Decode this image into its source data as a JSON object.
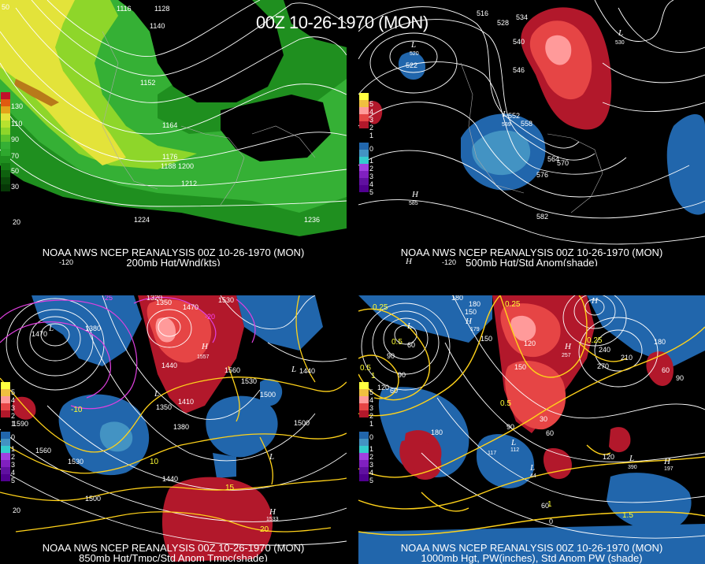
{
  "main_title": "00Z 10-26-1970 (MON)",
  "colors": {
    "background": "#000000",
    "contour": "#ffffff",
    "temp_contour": "#ffd21a",
    "magenta_contour": "#e040e0",
    "wind_light": "#2ea82e",
    "wind_mid": "#7fd12a",
    "wind_high": "#e6e640",
    "anom_neg1": "#2166ac",
    "anom_neg2": "#4393c3",
    "anom_pos1": "#b2182b",
    "anom_pos2": "#e64545",
    "anom_pos3": "#ff8888"
  },
  "panels": [
    {
      "id": "200mb",
      "caption_line1": "NOAA NWS NCEP REANALYSIS 00Z 10-26-1970 (MON)",
      "caption_line2": "200mb Hgt/Wnd(kts)",
      "legend_labels": [
        "130",
        "110",
        "90",
        "70",
        "50",
        "30"
      ],
      "height_labels": [
        "1116",
        "1128",
        "1140",
        "1152",
        "1164",
        "1176",
        "1188",
        "1200",
        "1212",
        "1224",
        "1236"
      ],
      "edge_labels": [
        "50",
        "20",
        "-120"
      ]
    },
    {
      "id": "500mb",
      "caption_line1": "NOAA NWS NCEP REANALYSIS 00Z 10-26-1970 (MON)",
      "caption_line2": "500mb Hgt/Std Anom(shade)",
      "legend_labels": [
        "5",
        "4",
        "3",
        "2",
        "1",
        "0",
        "1",
        "2",
        "3",
        "4",
        "5"
      ],
      "height_labels": [
        "516",
        "528",
        "534",
        "540",
        "546",
        "552",
        "558",
        "564",
        "570",
        "576",
        "582",
        "522",
        "520",
        "539",
        "530"
      ],
      "centers": [
        "L",
        "L",
        "H",
        "H",
        "L"
      ],
      "center_values": [
        "520",
        "539",
        "585",
        "530"
      ],
      "edge_labels": [
        "-120"
      ]
    },
    {
      "id": "850mb",
      "caption_line1": "NOAA NWS NCEP REANALYSIS 00Z 10-26-1970 (MON)",
      "caption_line2": "850mb Hgt/Tmpc/Std Anom Tmpc(shade)",
      "legend_labels": [
        "5",
        "4",
        "3",
        "2",
        "1",
        "0",
        "1",
        "2",
        "3",
        "4",
        "5"
      ],
      "height_labels": [
        "1320",
        "1350",
        "1470",
        "1530",
        "1380",
        "1440",
        "1560",
        "1530",
        "1500",
        "1440",
        "1410",
        "1380",
        "1350",
        "1590",
        "1560",
        "1530",
        "1500",
        "1440",
        "1500",
        "1470",
        "1533",
        "1557"
      ],
      "temp_labels": [
        "-10",
        "10",
        "15",
        "20",
        "-25",
        "-20"
      ],
      "centers": [
        "L",
        "H",
        "L",
        "L",
        "H",
        "L"
      ],
      "edge_labels": [
        "20"
      ]
    },
    {
      "id": "1000mb",
      "caption_line1": "NOAA NWS NCEP REANALYSIS 00Z 10-26-1970 (MON)",
      "caption_line2": "1000mb Hgt, PW(inches), Std Anom PW (shade)",
      "legend_labels": [
        "5",
        "4",
        "3",
        "2",
        "1",
        "0",
        "1",
        "2",
        "3",
        "4",
        "5"
      ],
      "height_labels": [
        "180",
        "180",
        "150",
        "150",
        "120",
        "90",
        "60",
        "90",
        "60",
        "120",
        "180",
        "240",
        "210",
        "270",
        "150",
        "180",
        "60",
        "90",
        "90",
        "30",
        "60",
        "120",
        "60",
        "0",
        "179",
        "112",
        "117",
        "44",
        "390",
        "197",
        "257"
      ],
      "pw_labels": [
        "0.25",
        "0.5",
        "0.25",
        "0.25",
        "0.5",
        "0.5",
        "1",
        "1.5",
        "1"
      ],
      "centers": [
        "H",
        "H",
        "L",
        "H",
        "L",
        "L",
        "L",
        "H"
      ]
    }
  ]
}
